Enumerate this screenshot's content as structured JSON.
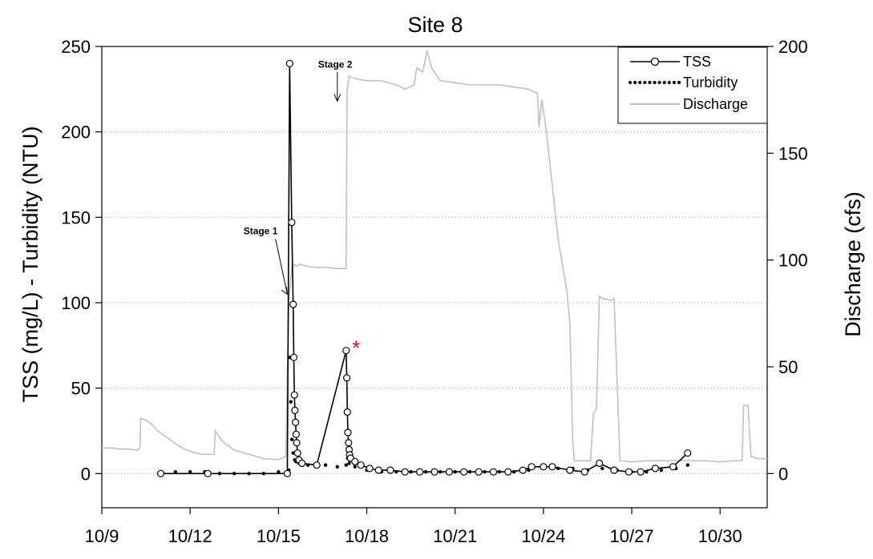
{
  "chart_data": {
    "type": "line",
    "title": "Site 8",
    "xlabel": "",
    "ylabel_left": "TSS (mg/L) - Turbidity (NTU)",
    "ylabel_right": "Discharge (cfs)",
    "x_unit": "day of October (10/d)",
    "xlim": [
      9,
      31.6
    ],
    "x_ticks": [
      9,
      12,
      15,
      18,
      21,
      24,
      27,
      30
    ],
    "x_tick_labels": [
      "10/9",
      "10/12",
      "10/15",
      "10/18",
      "10/21",
      "10/24",
      "10/27",
      "10/30"
    ],
    "ylim_left": [
      -20,
      250
    ],
    "y_ticks_left": [
      0,
      50,
      100,
      150,
      200,
      250
    ],
    "ylim_right": [
      -16,
      200
    ],
    "y_ticks_right": [
      0,
      50,
      100,
      150,
      200
    ],
    "grid": "horizontal dotted at left ticks",
    "legend": {
      "position": "top-right",
      "entries": [
        {
          "label": "TSS",
          "style": "line-open-circle"
        },
        {
          "label": "Turbidity",
          "style": "dotted-black"
        },
        {
          "label": "Discharge",
          "style": "gray-line"
        }
      ]
    },
    "annotations": [
      {
        "text": "Stage 1",
        "x": 15.5,
        "y": 142
      },
      {
        "text": "Stage 2",
        "x": 17.0,
        "y": 240
      },
      {
        "text": "*",
        "x": 17.5,
        "y": 75,
        "color": "#e8101a"
      }
    ],
    "colors": {
      "tss": "#000000",
      "turbidity": "#000000",
      "discharge": "#c0c0c0",
      "star": "#e8101a"
    },
    "series": [
      {
        "name": "TSS",
        "axis": "left",
        "x": [
          11.0,
          12.6,
          15.3,
          15.38,
          15.45,
          15.5,
          15.52,
          15.54,
          15.56,
          15.58,
          15.6,
          15.62,
          15.65,
          15.7,
          15.8,
          16.3,
          17.3,
          17.32,
          17.34,
          17.36,
          17.38,
          17.4,
          17.42,
          17.45,
          17.6,
          17.8,
          18.1,
          18.4,
          18.8,
          19.3,
          19.8,
          20.3,
          20.8,
          21.3,
          21.8,
          22.3,
          22.8,
          23.3,
          23.6,
          24.0,
          24.3,
          24.9,
          25.4,
          25.9,
          26.4,
          26.9,
          27.3,
          27.8,
          28.4,
          28.9
        ],
        "y": [
          0,
          0,
          0,
          240,
          147,
          99,
          68,
          46,
          37,
          30,
          23,
          18,
          12,
          8,
          6,
          5,
          72,
          56,
          36,
          24,
          18,
          14,
          11,
          9,
          7,
          5,
          3,
          2,
          2,
          1,
          1,
          1,
          1,
          1,
          1,
          1,
          1,
          2,
          4,
          4,
          4,
          2,
          1,
          6,
          2,
          1,
          1,
          3,
          4,
          12
        ]
      },
      {
        "name": "Turbidity",
        "axis": "left",
        "x": [
          11.0,
          11.5,
          12.0,
          12.5,
          13.0,
          13.5,
          14.0,
          14.5,
          15.0,
          15.35,
          15.38,
          15.42,
          15.46,
          15.5,
          15.55,
          15.6,
          15.7,
          15.85,
          16.0,
          16.3,
          16.6,
          17.0,
          17.3,
          17.35,
          17.4,
          17.6,
          18.0,
          18.5,
          19.0,
          19.5,
          20.0,
          20.5,
          21.0,
          21.5,
          22.0,
          22.5,
          23.0,
          23.5,
          24.0,
          24.5,
          25.0,
          25.5,
          26.0,
          26.5,
          27.0,
          27.5,
          28.0,
          28.5,
          28.9
        ],
        "y": [
          1,
          1,
          1,
          1,
          0,
          0,
          0,
          0,
          1,
          2,
          68,
          42,
          20,
          12,
          8,
          7,
          6,
          6,
          5,
          5,
          5,
          4,
          5,
          9,
          6,
          4,
          2,
          1,
          1,
          1,
          1,
          1,
          1,
          1,
          1,
          1,
          1,
          2,
          3,
          3,
          3,
          2,
          3,
          2,
          1,
          1,
          2,
          3,
          5
        ]
      },
      {
        "name": "Discharge",
        "axis": "right",
        "x": [
          9.0,
          9.3,
          9.6,
          9.9,
          10.2,
          10.3,
          10.32,
          10.5,
          10.7,
          10.9,
          11.2,
          11.5,
          11.8,
          12.1,
          12.4,
          12.7,
          12.82,
          12.85,
          13.1,
          13.5,
          14.0,
          14.5,
          15.0,
          15.25,
          15.35,
          15.45,
          15.55,
          15.6,
          15.7,
          16.0,
          16.3,
          16.6,
          17.0,
          17.3,
          17.33,
          17.4,
          17.6,
          18.0,
          18.5,
          19.0,
          19.3,
          19.6,
          19.7,
          19.9,
          20.0,
          20.05,
          20.2,
          20.5,
          21.0,
          21.5,
          22.0,
          22.5,
          23.0,
          23.5,
          23.8,
          23.85,
          23.95,
          24.1,
          24.3,
          24.5,
          24.8,
          24.9,
          25.0,
          25.05,
          25.1,
          25.3,
          25.6,
          25.7,
          25.8,
          25.9,
          26.0,
          26.3,
          26.4,
          26.6,
          27.0,
          27.5,
          28.0,
          28.5,
          29.0,
          29.5,
          30.0,
          30.5,
          30.75,
          30.8,
          30.95,
          31.05,
          31.3,
          31.6
        ],
        "y": [
          12,
          12,
          11.5,
          11.5,
          11,
          12,
          26,
          25,
          23,
          20,
          17,
          14,
          11.5,
          10,
          9,
          9,
          9,
          20,
          15,
          11,
          9,
          7,
          6.5,
          8,
          80,
          97,
          98,
          97,
          98,
          97,
          96.5,
          96.5,
          96,
          96,
          179,
          186,
          185,
          184,
          184,
          182,
          180,
          182,
          190,
          188,
          195,
          198,
          190,
          184,
          183,
          182,
          182,
          182,
          181,
          180,
          178,
          162,
          175,
          160,
          135,
          110,
          85,
          70,
          14,
          6,
          6,
          6,
          6,
          28,
          30,
          83,
          82,
          81,
          82,
          6,
          5.5,
          6,
          6,
          6,
          6,
          6,
          5.5,
          6,
          6,
          32,
          32,
          8,
          7,
          7
        ]
      }
    ]
  }
}
